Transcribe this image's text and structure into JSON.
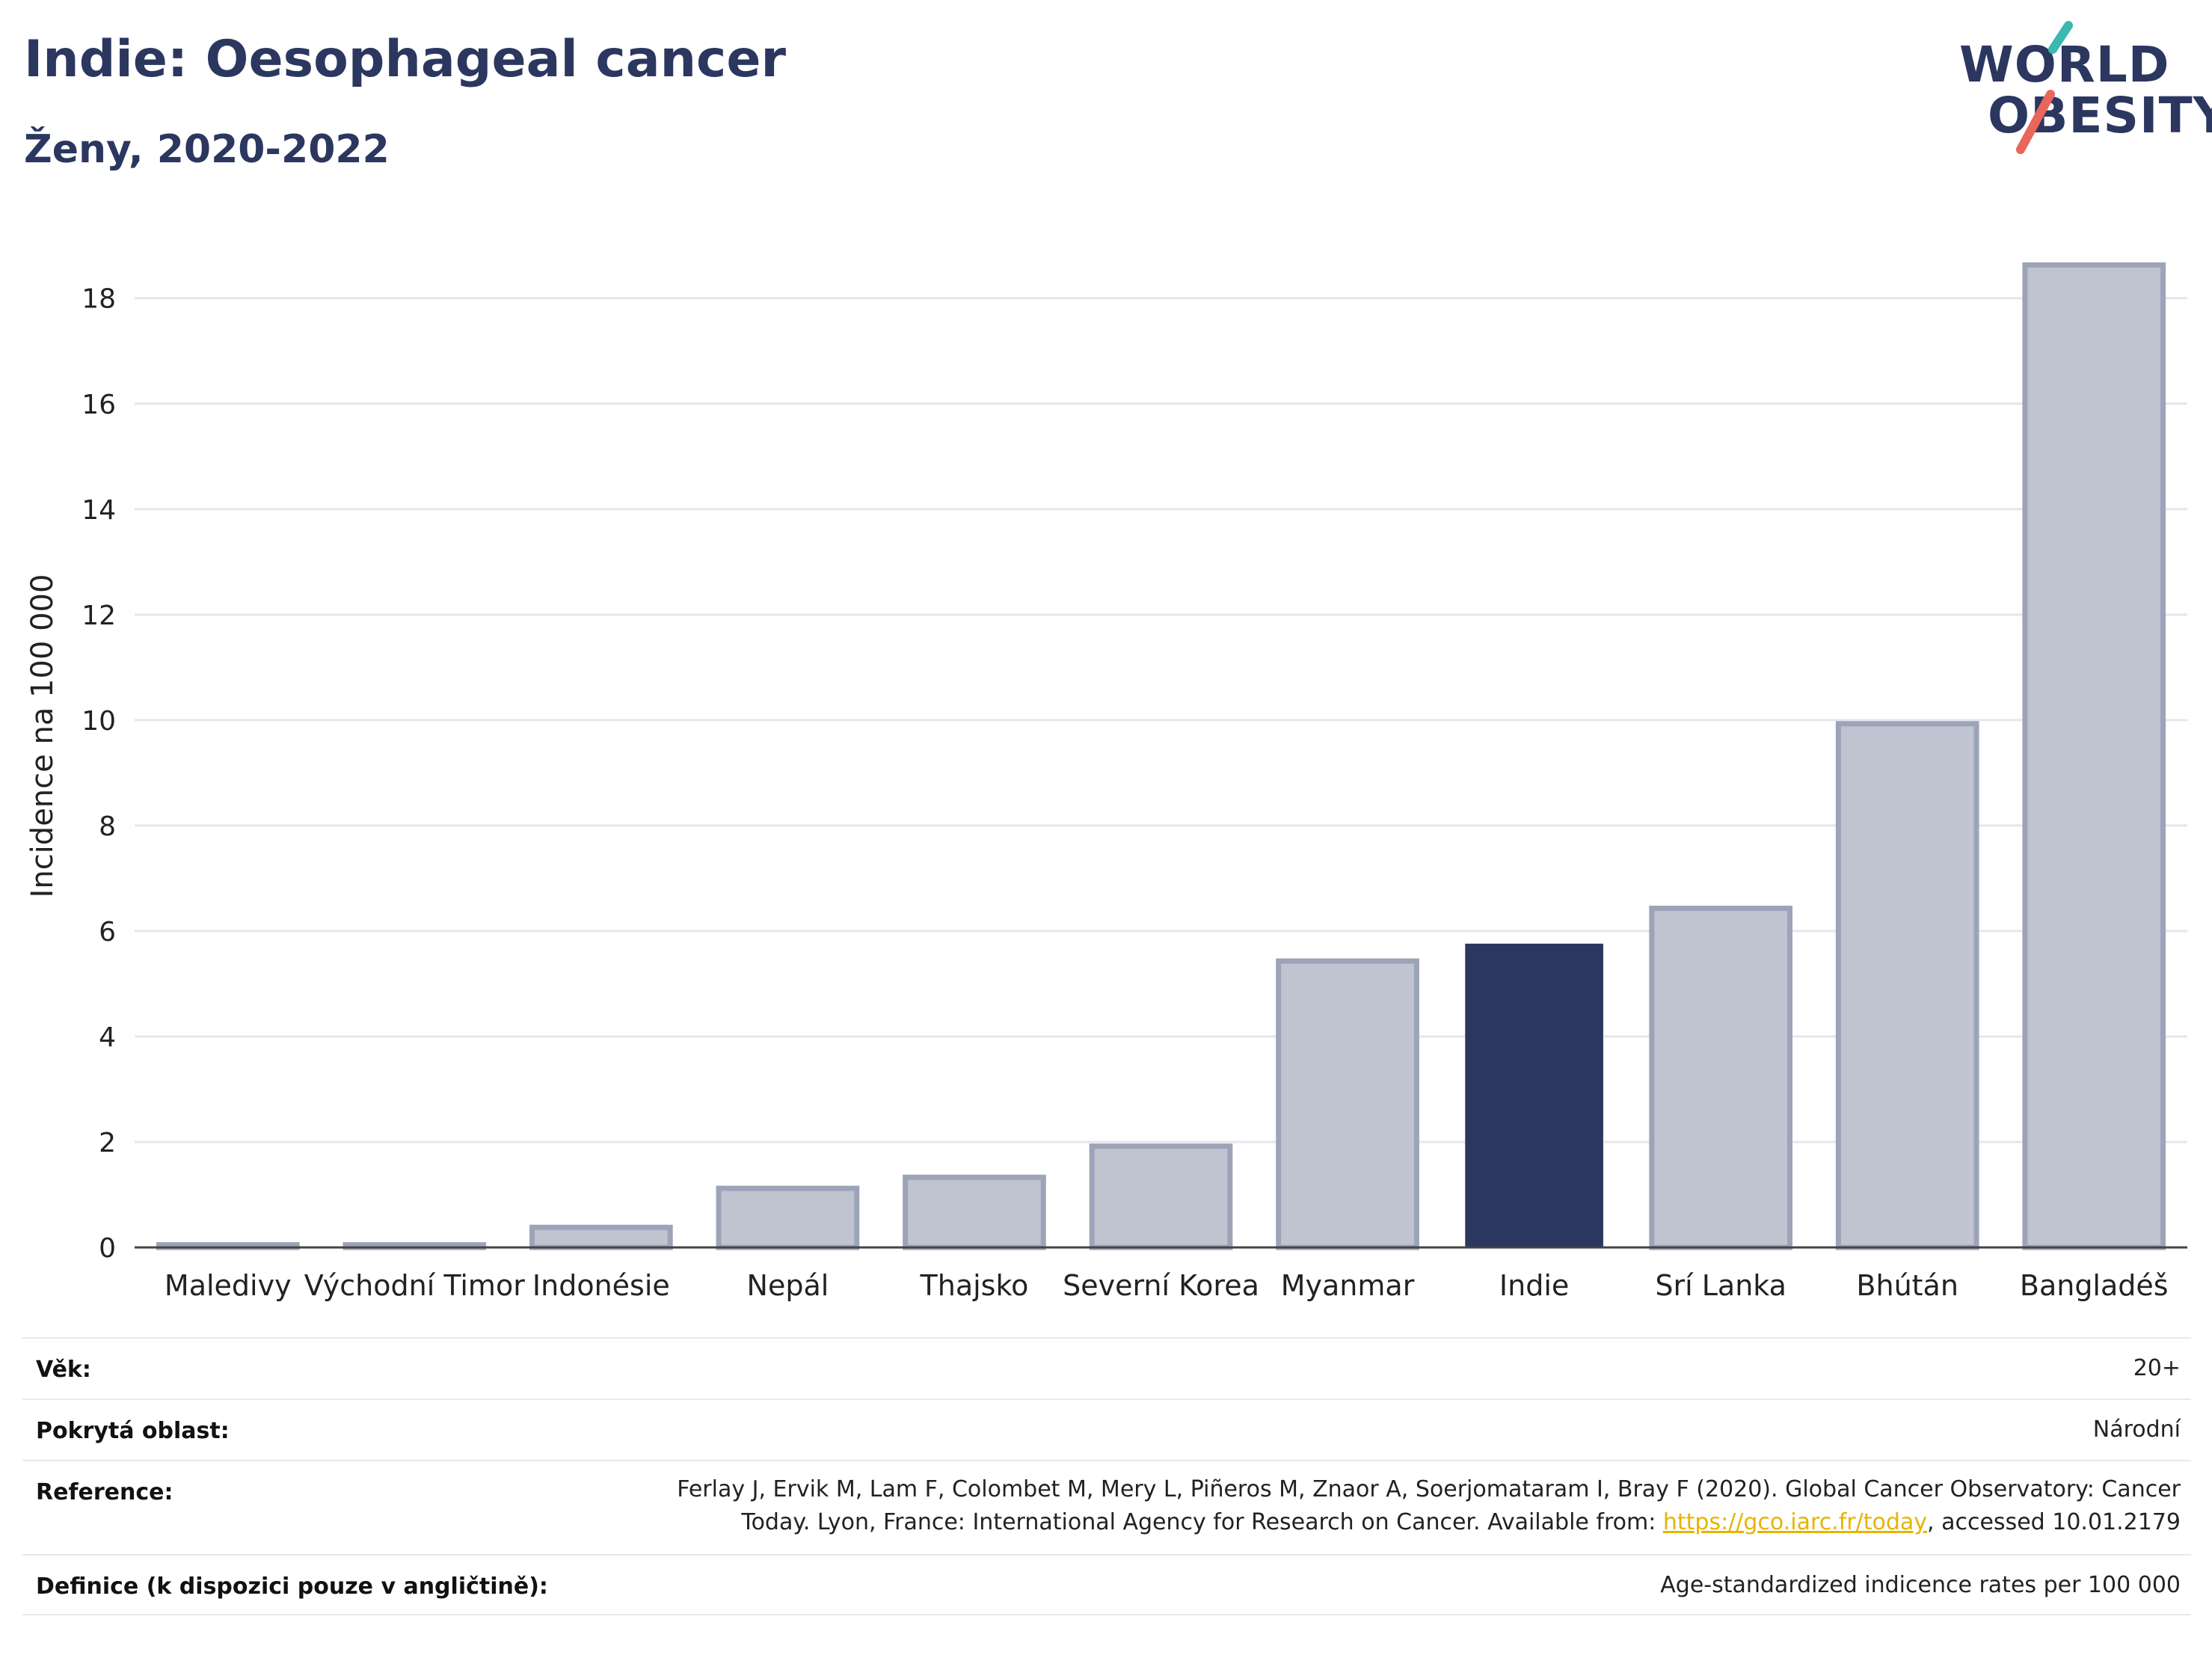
{
  "header": {
    "title": "Indie: Oesophageal cancer",
    "subtitle": "Ženy, 2020-2022"
  },
  "logo": {
    "line1": "WORLD",
    "line2": "OBESITY",
    "accent_teal": "#3bb8b0",
    "accent_red": "#e8665a"
  },
  "chart_data": {
    "type": "bar",
    "categories": [
      "Maledivy",
      "Východní Timor",
      "Indonésie",
      "Nepál",
      "Thajsko",
      "Severní Korea",
      "Myanmar",
      "Indie",
      "Srí Lanka",
      "Bhútán",
      "Bangladéš"
    ],
    "values": [
      0.05,
      0.05,
      0.38,
      1.12,
      1.33,
      1.92,
      5.43,
      5.76,
      6.43,
      9.93,
      18.63
    ],
    "highlight": "Indie",
    "ylabel": "Incidence na 100 000",
    "xlabel": "",
    "ylim": [
      0,
      19.4
    ],
    "yticks": [
      0,
      2,
      4,
      6,
      8,
      10,
      12,
      14,
      16,
      18
    ],
    "grid": true,
    "colors": {
      "highlight": "#2b375f",
      "bar": "#c0c3d0",
      "bar_border": "#9da3b8"
    }
  },
  "meta": {
    "age_label": "Věk:",
    "age_value": "20+",
    "area_label": "Pokrytá oblast:",
    "area_value": "Národní",
    "reference_label": "Reference:",
    "reference_line1": "Ferlay J, Ervik M, Lam F, Colombet M, Mery L, Piñeros M, Znaor A, Soerjomataram I, Bray F (2020). Global Cancer Observatory: Cancer",
    "reference_line2_pre": "Today. Lyon, France: International Agency for Research on Cancer. Available from: ",
    "reference_link": "https://gco.iarc.fr/today",
    "reference_line2_post": ", accessed 10.01.2179",
    "definition_label": "Definice (k dispozici pouze v angličtině):",
    "definition_value": "Age-standardized indicence rates per 100 000"
  }
}
